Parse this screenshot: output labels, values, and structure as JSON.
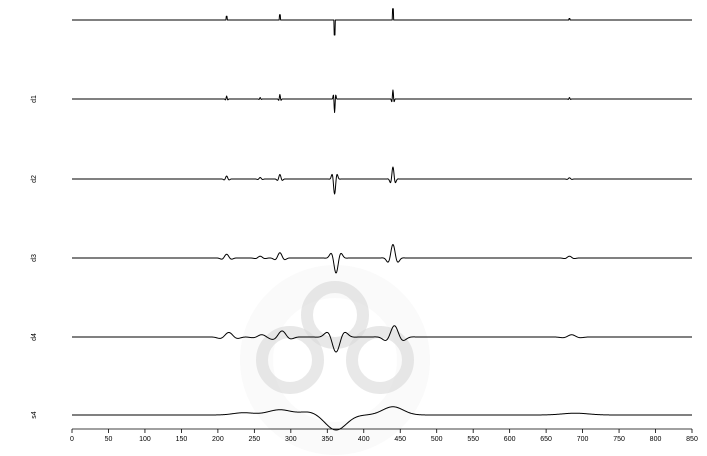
{
  "chart_data": {
    "type": "line",
    "xlim": [
      0,
      850
    ],
    "x_ticks": [
      0,
      50,
      100,
      150,
      200,
      250,
      300,
      350,
      400,
      450,
      500,
      550,
      600,
      650,
      700,
      750,
      800,
      850
    ],
    "x_tick_labels": [
      "0",
      "50",
      "100",
      "150",
      "200",
      "250",
      "300",
      "350",
      "400",
      "450",
      "500",
      "550",
      "600",
      "650",
      "700",
      "750",
      "800",
      "850"
    ],
    "grid": false,
    "series": [
      {
        "name": "",
        "label": "",
        "events": [
          {
            "x": 212,
            "amp": 0.25,
            "width": 0.8,
            "kind": "spike"
          },
          {
            "x": 285,
            "amp": 0.35,
            "width": 0.8,
            "kind": "spike"
          },
          {
            "x": 360,
            "amp": -1.0,
            "width": 0.8,
            "kind": "spike"
          },
          {
            "x": 440,
            "amp": 0.75,
            "width": 0.8,
            "kind": "spike"
          },
          {
            "x": 682,
            "amp": 0.1,
            "width": 0.8,
            "kind": "spike"
          }
        ]
      },
      {
        "name": "d1",
        "label": "d1",
        "events": [
          {
            "x": 212,
            "amp": 0.2,
            "width": 1.2,
            "kind": "wave"
          },
          {
            "x": 258,
            "amp": 0.1,
            "width": 1.2,
            "kind": "wave"
          },
          {
            "x": 285,
            "amp": 0.3,
            "width": 1.2,
            "kind": "wave"
          },
          {
            "x": 360,
            "amp": -0.9,
            "width": 1.2,
            "kind": "wave"
          },
          {
            "x": 440,
            "amp": 0.6,
            "width": 1.2,
            "kind": "wave"
          },
          {
            "x": 682,
            "amp": 0.1,
            "width": 1.2,
            "kind": "wave"
          }
        ]
      },
      {
        "name": "d2",
        "label": "d2",
        "events": [
          {
            "x": 212,
            "amp": 0.2,
            "width": 2.5,
            "kind": "wave"
          },
          {
            "x": 258,
            "amp": 0.1,
            "width": 2.5,
            "kind": "wave"
          },
          {
            "x": 285,
            "amp": 0.3,
            "width": 2.5,
            "kind": "wave"
          },
          {
            "x": 360,
            "amp": -1.0,
            "width": 2.5,
            "kind": "wave"
          },
          {
            "x": 440,
            "amp": 0.8,
            "width": 2.5,
            "kind": "wave"
          },
          {
            "x": 682,
            "amp": 0.08,
            "width": 2.5,
            "kind": "wave"
          }
        ]
      },
      {
        "name": "d3",
        "label": "d3",
        "events": [
          {
            "x": 212,
            "amp": 0.25,
            "width": 5,
            "kind": "wave"
          },
          {
            "x": 258,
            "amp": 0.12,
            "width": 5,
            "kind": "wave"
          },
          {
            "x": 285,
            "amp": 0.35,
            "width": 5,
            "kind": "wave"
          },
          {
            "x": 362,
            "amp": -1.0,
            "width": 5,
            "kind": "wave"
          },
          {
            "x": 440,
            "amp": 0.9,
            "width": 5,
            "kind": "wave"
          },
          {
            "x": 682,
            "amp": 0.12,
            "width": 5,
            "kind": "wave"
          }
        ]
      },
      {
        "name": "d4",
        "label": "d4",
        "events": [
          {
            "x": 215,
            "amp": 0.3,
            "width": 9,
            "kind": "wave"
          },
          {
            "x": 260,
            "amp": 0.15,
            "width": 9,
            "kind": "wave"
          },
          {
            "x": 288,
            "amp": 0.4,
            "width": 9,
            "kind": "wave"
          },
          {
            "x": 362,
            "amp": -1.0,
            "width": 9,
            "kind": "wave"
          },
          {
            "x": 442,
            "amp": 0.75,
            "width": 9,
            "kind": "wave"
          },
          {
            "x": 685,
            "amp": 0.15,
            "width": 9,
            "kind": "wave"
          }
        ]
      },
      {
        "name": "s4",
        "label": "s4",
        "events": [
          {
            "x": 235,
            "amp": 0.15,
            "width": 14,
            "kind": "bump"
          },
          {
            "x": 285,
            "amp": 0.35,
            "width": 16,
            "kind": "bump"
          },
          {
            "x": 325,
            "amp": 0.2,
            "width": 12,
            "kind": "bump"
          },
          {
            "x": 362,
            "amp": -1.0,
            "width": 14,
            "kind": "bump"
          },
          {
            "x": 440,
            "amp": 0.55,
            "width": 14,
            "kind": "bump"
          },
          {
            "x": 690,
            "amp": 0.12,
            "width": 18,
            "kind": "bump"
          }
        ]
      }
    ]
  }
}
